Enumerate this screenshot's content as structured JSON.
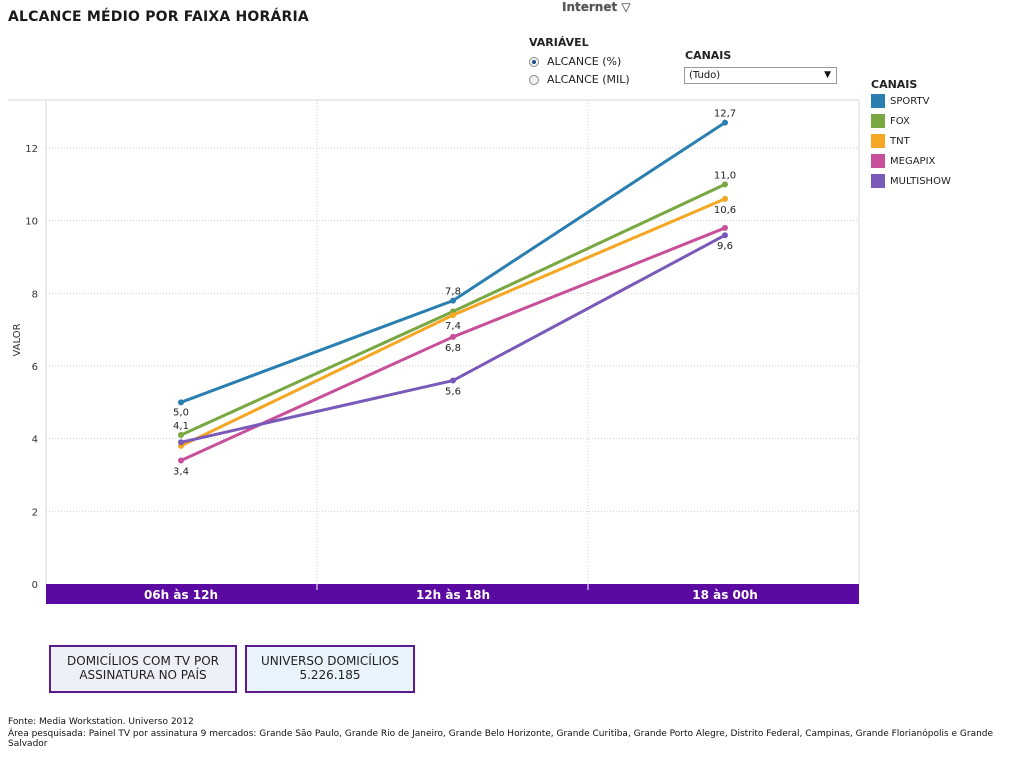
{
  "title": "ALCANCE MÉDIO POR FAIXA HORÁRIA",
  "top_source_label": "Internet ▽",
  "variavel": {
    "title": "VARIÁVEL",
    "options": [
      {
        "label": "ALCANCE (%)",
        "selected": true
      },
      {
        "label": "ALCANCE (MIL)",
        "selected": false
      }
    ]
  },
  "canais_filter": {
    "title": "CANAIS",
    "selected": "(Tudo)"
  },
  "legend": {
    "title": "CANAIS",
    "items": [
      {
        "label": "SPORTV",
        "color": "#2a7fb0"
      },
      {
        "label": "FOX",
        "color": "#79a842"
      },
      {
        "label": "TNT",
        "color": "#f5a623"
      },
      {
        "label": "MEGAPIX",
        "color": "#c8509a"
      },
      {
        "label": "MULTISHOW",
        "color": "#7a5ab8"
      }
    ]
  },
  "chart_data": {
    "type": "line",
    "ylabel": "VALOR",
    "xlabel": "",
    "categories": [
      "06h às 12h",
      "12h às 18h",
      "18 às 00h"
    ],
    "ylim": [
      0,
      12.9
    ],
    "yticks": [
      0,
      2,
      4,
      6,
      8,
      10,
      12
    ],
    "grid": true,
    "band_color": "#5a0aa0",
    "series": [
      {
        "name": "SPORTV",
        "color": "#2a7fb0",
        "values": [
          5.0,
          7.8,
          12.7
        ],
        "labels": [
          "5,0",
          "7,8",
          "12,7"
        ]
      },
      {
        "name": "FOX",
        "color": "#79a842",
        "values": [
          4.1,
          7.5,
          11.0
        ],
        "labels": [
          "4,1",
          "",
          "11,0"
        ]
      },
      {
        "name": "TNT",
        "color": "#f5a623",
        "values": [
          3.8,
          7.4,
          10.6
        ],
        "labels": [
          "",
          "7,4",
          "10,6"
        ]
      },
      {
        "name": "MEGAPIX",
        "color": "#c8509a",
        "values": [
          3.4,
          6.8,
          9.8
        ],
        "labels": [
          "3,4",
          "6,8",
          ""
        ]
      },
      {
        "name": "MULTISHOW",
        "color": "#7a5ab8",
        "values": [
          3.9,
          5.6,
          9.6
        ],
        "labels": [
          "",
          "5,6",
          "9,6"
        ]
      }
    ]
  },
  "stats": [
    {
      "line1": "DOMICÍLIOS COM TV POR",
      "line2": "ASSINATURA NO PAÍS",
      "bg": "#eef0f8"
    },
    {
      "line1": "UNIVERSO DOMICÍLIOS",
      "line2": "5.226.185",
      "bg": "#e8f3fb"
    }
  ],
  "footer": {
    "source": "Fonte: Media Workstation. Universo 2012",
    "area": "Área pesquisada: Painel TV por assinatura 9 mercados: Grande São Paulo, Grande Rio de Janeiro, Grande Belo Horizonte, Grande Curitiba, Grande Porto Alegre, Distrito Federal, Campinas, Grande Florianópolis e Grande Salvador"
  }
}
